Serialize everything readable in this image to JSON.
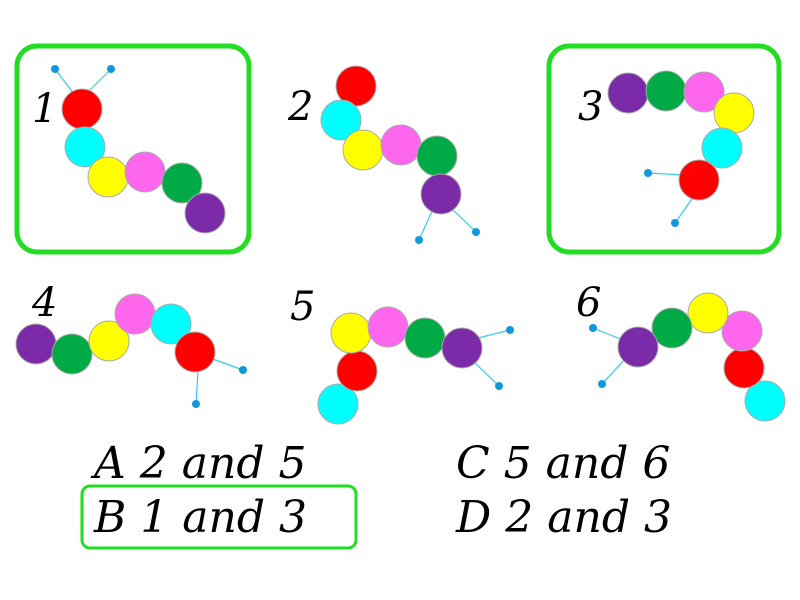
{
  "highlight_color": "#22dd22",
  "ball_colors": {
    "red": "#ff0000",
    "cyan": "#00ffff",
    "yellow": "#ffff00",
    "magenta": "#ff66ee",
    "green": "#00aa44",
    "purple": "#7b2aa8"
  },
  "antenna_color": "#33ccee",
  "antenna_tip_color": "#1199dd",
  "caterpillars": [
    {
      "label": "1",
      "highlighted": true
    },
    {
      "label": "2",
      "highlighted": false
    },
    {
      "label": "3",
      "highlighted": true
    },
    {
      "label": "4",
      "highlighted": false
    },
    {
      "label": "5",
      "highlighted": false
    },
    {
      "label": "6",
      "highlighted": false
    }
  ],
  "answers": {
    "A": "A 2 and 5",
    "B": "B 1 and 3",
    "C": "C 5 and 6",
    "D": "D 2 and 3"
  },
  "selected_answer": "B"
}
